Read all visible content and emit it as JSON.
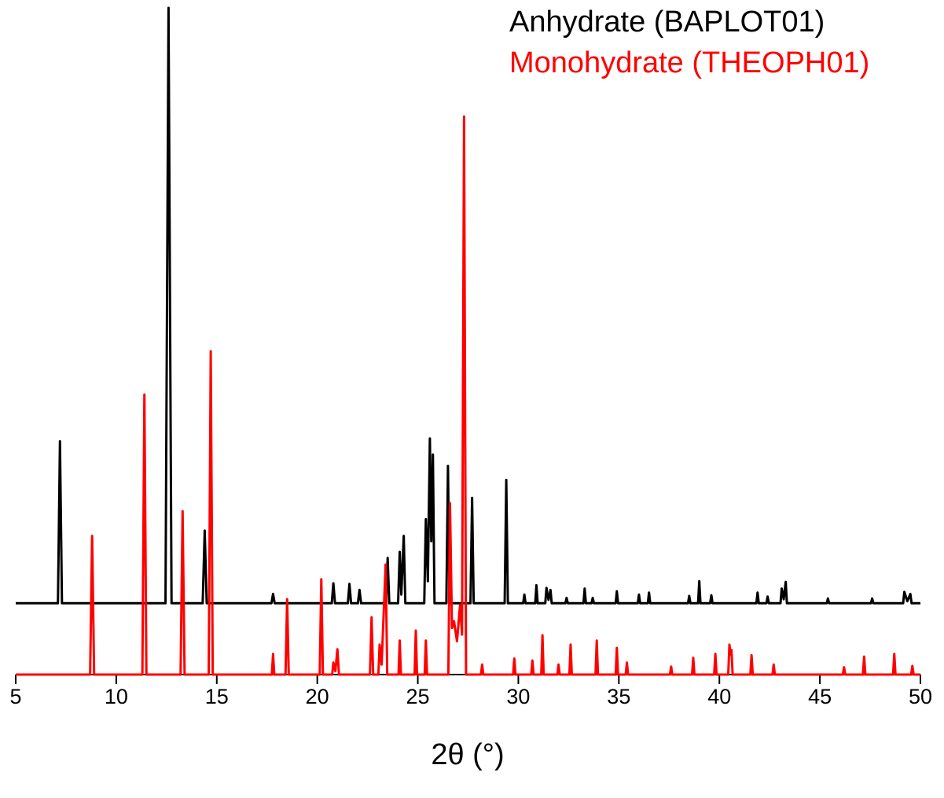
{
  "chart_data": {
    "type": "line",
    "x_label": "2θ (°)",
    "legend": "upper right",
    "xlim": [
      5,
      50
    ],
    "ylim": [
      0,
      100
    ],
    "xticks": [
      5,
      10,
      15,
      20,
      25,
      30,
      35,
      40,
      45,
      50
    ],
    "series": [
      {
        "name": "Anhydrate (BAPLOT01)",
        "color": "#000000",
        "x": [
          5,
          7.1,
          7.2,
          7.3,
          12.45,
          12.6,
          12.75,
          14.3,
          14.4,
          14.5,
          17.72,
          17.8,
          17.88,
          20.72,
          20.8,
          20.88,
          21.52,
          21.6,
          21.68,
          22.02,
          22.1,
          22.18,
          23.42,
          23.5,
          23.58,
          24.02,
          24.1,
          24.18,
          24.3,
          24.38,
          25.32,
          25.4,
          25.5,
          25.6,
          25.67,
          25.75,
          25.83,
          26.42,
          26.5,
          26.58,
          27.62,
          27.7,
          27.78,
          29.32,
          29.4,
          29.48,
          30.24,
          30.3,
          30.36,
          30.84,
          30.9,
          30.96,
          31.34,
          31.4,
          31.5,
          31.6,
          31.66,
          32.34,
          32.4,
          32.46,
          33.24,
          33.3,
          33.36,
          33.64,
          33.7,
          33.76,
          34.84,
          34.9,
          34.96,
          35.94,
          36.0,
          36.06,
          36.44,
          36.5,
          36.56,
          38.44,
          38.5,
          38.56,
          38.94,
          39.0,
          39.06,
          39.54,
          39.6,
          39.66,
          41.84,
          41.9,
          41.96,
          42.34,
          42.4,
          42.46,
          43.04,
          43.1,
          43.2,
          43.3,
          43.36,
          45.34,
          45.4,
          45.46,
          47.54,
          47.6,
          47.66,
          49.14,
          49.2,
          49.35,
          49.5,
          49.56,
          50
        ],
        "values": [
          10.7,
          10.7,
          35.0,
          10.7,
          10.7,
          100,
          10.7,
          10.7,
          21.6,
          10.7,
          10.7,
          12.1,
          10.7,
          10.7,
          13.7,
          10.7,
          10.7,
          13.6,
          10.7,
          10.7,
          12.7,
          10.7,
          10.7,
          17.5,
          10.7,
          10.7,
          18.4,
          12,
          20.8,
          10.7,
          10.7,
          23.3,
          14,
          35.4,
          20,
          33.0,
          10.7,
          10.7,
          31.3,
          10.7,
          10.7,
          26.5,
          10.7,
          10.7,
          29.2,
          10.7,
          10.7,
          12.0,
          10.7,
          10.7,
          13.4,
          10.7,
          10.7,
          13.0,
          11.2,
          12.7,
          10.7,
          10.7,
          11.5,
          10.7,
          10.7,
          12.9,
          10.7,
          10.7,
          11.5,
          10.7,
          10.7,
          12.5,
          10.7,
          10.7,
          12.0,
          10.7,
          10.7,
          12.3,
          10.7,
          10.7,
          11.8,
          10.7,
          10.7,
          14.0,
          10.7,
          10.7,
          11.9,
          10.7,
          10.7,
          12.3,
          10.7,
          10.7,
          11.7,
          10.7,
          10.7,
          12.9,
          11.3,
          13.9,
          10.7,
          10.7,
          11.4,
          10.7,
          10.7,
          11.4,
          10.7,
          10.7,
          12.4,
          11,
          12.1,
          10.7,
          10.7
        ]
      },
      {
        "name": "Monohydrate (THEOPH01)",
        "color": "#ff0000",
        "x": [
          5,
          8.7,
          8.8,
          8.9,
          11.3,
          11.4,
          11.5,
          13.2,
          13.3,
          13.4,
          14.6,
          14.7,
          14.8,
          17.74,
          17.8,
          17.86,
          18.42,
          18.5,
          18.58,
          20.12,
          20.2,
          20.28,
          20.74,
          20.8,
          20.9,
          21.0,
          21.08,
          22.62,
          22.7,
          22.78,
          23.04,
          23.1,
          23.2,
          23.4,
          23.48,
          24.04,
          24.1,
          24.16,
          24.84,
          24.9,
          24.96,
          25.34,
          25.4,
          25.46,
          26.52,
          26.6,
          26.7,
          26.8,
          26.95,
          27.1,
          27.2,
          27.3,
          27.4,
          28.14,
          28.2,
          28.26,
          29.74,
          29.8,
          29.86,
          30.64,
          30.7,
          30.76,
          31.14,
          31.2,
          31.26,
          31.94,
          32.0,
          32.06,
          32.54,
          32.6,
          32.66,
          33.84,
          33.9,
          33.96,
          34.84,
          34.9,
          34.96,
          35.34,
          35.4,
          35.46,
          37.54,
          37.6,
          37.66,
          38.64,
          38.7,
          38.76,
          39.74,
          39.8,
          39.86,
          40.44,
          40.5,
          40.55,
          40.6,
          40.66,
          41.54,
          41.6,
          41.66,
          42.64,
          42.7,
          42.76,
          46.14,
          46.2,
          46.26,
          47.14,
          47.2,
          47.26,
          48.64,
          48.7,
          48.76,
          49.54,
          49.6,
          49.66,
          50
        ],
        "values": [
          0,
          0,
          20.8,
          0,
          0,
          42.0,
          0,
          0,
          24.5,
          0,
          0,
          48.5,
          0,
          0,
          3.1,
          0,
          0,
          11.3,
          0,
          0,
          14.3,
          0,
          0,
          1.8,
          0.5,
          3.8,
          0,
          0,
          8.6,
          0,
          0,
          4.5,
          1.5,
          16.5,
          0,
          0,
          5.1,
          0,
          0,
          6.6,
          0,
          0,
          5.1,
          0,
          0,
          25.7,
          7,
          8.0,
          5,
          10.4,
          6,
          83.7,
          0,
          0,
          1.5,
          0,
          0,
          2.4,
          0,
          0,
          2.1,
          0,
          0,
          5.9,
          0,
          0,
          1.5,
          0,
          0,
          4.5,
          0,
          0,
          5.1,
          0,
          0,
          4.0,
          0,
          0,
          1.8,
          0,
          0,
          1.2,
          0,
          0,
          2.5,
          0,
          0,
          3.1,
          0,
          0,
          4.5,
          3.0,
          3.7,
          0,
          0,
          2.9,
          0,
          0,
          1.5,
          0,
          0,
          1.1,
          0,
          0,
          2.7,
          0,
          0,
          3.1,
          0,
          0,
          1.3,
          0,
          0
        ]
      }
    ]
  }
}
